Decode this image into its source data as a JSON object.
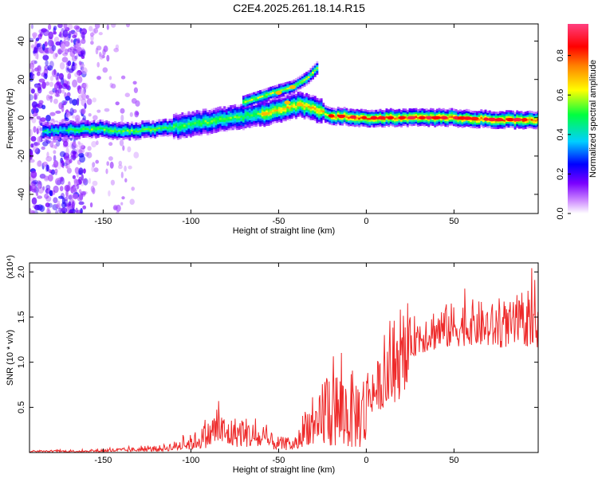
{
  "title": "C2E4.2025.261.18.14.R15",
  "colors": {
    "snr_line": "#ee2a2a",
    "axis": "#000000"
  },
  "chart_data": [
    {
      "type": "heatmap",
      "title": "C2E4.2025.261.18.14.R15",
      "xlabel": "Height of straight line (km)",
      "ylabel": "Frequency (Hz)",
      "xlim": [
        -192,
        98
      ],
      "ylim": [
        -50,
        49
      ],
      "xticks": [
        -150,
        -100,
        -50,
        0,
        50
      ],
      "yticks": [
        -40,
        -20,
        0,
        20,
        40
      ],
      "colorbar": {
        "label": "Normalized spectral amplitude",
        "range": [
          0,
          0.96
        ],
        "ticks": [
          "0.0",
          "0.2",
          "0.4",
          "0.6",
          "0.8"
        ],
        "colormap": [
          "#ffffff",
          "#7a00ff",
          "#0000ff",
          "#00e8ff",
          "#00ff00",
          "#ffff00",
          "#ff8000",
          "#ff0000",
          "#ff40ff"
        ]
      },
      "ridge": [
        {
          "x": -182,
          "y": -7
        },
        {
          "x": -170,
          "y": -6
        },
        {
          "x": -150,
          "y": -6
        },
        {
          "x": -135,
          "y": -7
        },
        {
          "x": -120,
          "y": -6
        },
        {
          "x": -105,
          "y": -4
        },
        {
          "x": -90,
          "y": -2
        },
        {
          "x": -75,
          "y": 0
        },
        {
          "x": -60,
          "y": 2
        },
        {
          "x": -45,
          "y": 5
        },
        {
          "x": -38,
          "y": 7
        },
        {
          "x": -30,
          "y": 5
        },
        {
          "x": -20,
          "y": 1
        },
        {
          "x": 0,
          "y": 0
        },
        {
          "x": 20,
          "y": 0
        },
        {
          "x": 50,
          "y": 0
        },
        {
          "x": 75,
          "y": -1
        },
        {
          "x": 98,
          "y": -1
        }
      ],
      "upper_branch": [
        {
          "x": -70,
          "y": 8
        },
        {
          "x": -60,
          "y": 11
        },
        {
          "x": -50,
          "y": 14
        },
        {
          "x": -42,
          "y": 16
        },
        {
          "x": -33,
          "y": 21
        },
        {
          "x": -27,
          "y": 27
        }
      ]
    },
    {
      "type": "line",
      "xlabel": "Height of straight line (km)",
      "ylabel": "SNR (10 * v/v)",
      "y_multiplier": "(x10⁴)",
      "xlim": [
        -192,
        98
      ],
      "ylim": [
        0,
        2.1
      ],
      "xticks": [
        -150,
        -100,
        -50,
        0,
        50
      ],
      "yticks": [
        0.5,
        1.0,
        1.5,
        2.0
      ],
      "ytick_labels": [
        "0.5",
        "1.0",
        "1.5",
        "2.0"
      ],
      "series": [
        {
          "envelope": [
            {
              "x": -192,
              "y": 0.02
            },
            {
              "x": -160,
              "y": 0.03
            },
            {
              "x": -140,
              "y": 0.05
            },
            {
              "x": -120,
              "y": 0.07
            },
            {
              "x": -110,
              "y": 0.12
            },
            {
              "x": -100,
              "y": 0.2
            },
            {
              "x": -90,
              "y": 0.35
            },
            {
              "x": -85,
              "y": 0.55
            },
            {
              "x": -80,
              "y": 0.38
            },
            {
              "x": -70,
              "y": 0.42
            },
            {
              "x": -60,
              "y": 0.28
            },
            {
              "x": -50,
              "y": 0.18
            },
            {
              "x": -40,
              "y": 0.15
            },
            {
              "x": -34,
              "y": 0.6
            },
            {
              "x": -28,
              "y": 0.45
            },
            {
              "x": -24,
              "y": 1.05
            },
            {
              "x": -15,
              "y": 0.95
            },
            {
              "x": -5,
              "y": 0.9
            },
            {
              "x": 5,
              "y": 1.0
            },
            {
              "x": 15,
              "y": 1.2
            },
            {
              "x": 25,
              "y": 1.5
            },
            {
              "x": 35,
              "y": 1.6
            },
            {
              "x": 45,
              "y": 1.65
            },
            {
              "x": 60,
              "y": 1.7
            },
            {
              "x": 75,
              "y": 1.65
            },
            {
              "x": 90,
              "y": 1.7
            },
            {
              "x": 98,
              "y": 1.6
            }
          ]
        }
      ]
    }
  ]
}
